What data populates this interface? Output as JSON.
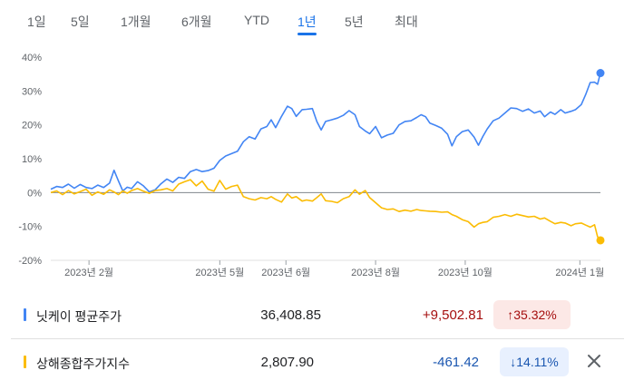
{
  "tabs": [
    {
      "label": "1일",
      "active": false
    },
    {
      "label": "5일",
      "active": false
    },
    {
      "label": "1개월",
      "active": false
    },
    {
      "label": "6개월",
      "active": false
    },
    {
      "label": "YTD",
      "active": false
    },
    {
      "label": "1년",
      "active": true
    },
    {
      "label": "5년",
      "active": false
    },
    {
      "label": "최대",
      "active": false
    }
  ],
  "colors": {
    "nikkei": "#4285f4",
    "shanghai": "#fbbc04",
    "up_text": "#a50e0e",
    "up_bg": "#fce8e6",
    "down_text": "#1a56b0",
    "down_bg": "#e8f0fe"
  },
  "chart_data": {
    "type": "line",
    "title": "",
    "xlabel": "",
    "ylabel": "",
    "ylim": [
      -20,
      40
    ],
    "y_ticks": [
      "40%",
      "30%",
      "20%",
      "10%",
      "0%",
      "-10%",
      "-20%"
    ],
    "y_tick_values": [
      40,
      30,
      20,
      10,
      0,
      -10,
      -20
    ],
    "x_ticks": [
      "2023년 2월",
      "2023년 5월",
      "2023년 6월",
      "2023년 8월",
      "2023년 10월",
      "2024년 1월"
    ],
    "x_tick_dates": [
      "2023-02-01",
      "2023-05-01",
      "2023-06-15",
      "2023-08-15",
      "2023-10-15",
      "2024-01-01"
    ],
    "x_range": [
      "2023-01-06",
      "2024-01-15"
    ],
    "grid": false,
    "zero_line": true,
    "series": [
      {
        "name": "닛케이 평균주가",
        "color_key": "nikkei",
        "points": [
          [
            "2023-01-06",
            1.0
          ],
          [
            "2023-01-10",
            1.8
          ],
          [
            "2023-01-14",
            1.5
          ],
          [
            "2023-01-18",
            2.5
          ],
          [
            "2023-01-22",
            1.3
          ],
          [
            "2023-01-26",
            2.4
          ],
          [
            "2023-01-30",
            1.5
          ],
          [
            "2023-02-03",
            1.2
          ],
          [
            "2023-02-07",
            2.2
          ],
          [
            "2023-02-11",
            1.5
          ],
          [
            "2023-02-15",
            2.8
          ],
          [
            "2023-02-18",
            6.6
          ],
          [
            "2023-02-21",
            3.5
          ],
          [
            "2023-02-24",
            0.5
          ],
          [
            "2023-02-27",
            1.6
          ],
          [
            "2023-03-02",
            1.2
          ],
          [
            "2023-03-06",
            3.2
          ],
          [
            "2023-03-10",
            2.0
          ],
          [
            "2023-03-14",
            0.2
          ],
          [
            "2023-03-18",
            0.8
          ],
          [
            "2023-03-22",
            2.6
          ],
          [
            "2023-03-26",
            4.0
          ],
          [
            "2023-03-30",
            3.0
          ],
          [
            "2023-04-03",
            4.5
          ],
          [
            "2023-04-07",
            4.2
          ],
          [
            "2023-04-11",
            6.2
          ],
          [
            "2023-04-15",
            6.8
          ],
          [
            "2023-04-19",
            6.2
          ],
          [
            "2023-04-23",
            6.5
          ],
          [
            "2023-04-27",
            7.2
          ],
          [
            "2023-05-01",
            9.5
          ],
          [
            "2023-05-05",
            10.8
          ],
          [
            "2023-05-09",
            11.5
          ],
          [
            "2023-05-13",
            12.2
          ],
          [
            "2023-05-17",
            15.0
          ],
          [
            "2023-05-21",
            16.5
          ],
          [
            "2023-05-25",
            15.8
          ],
          [
            "2023-05-29",
            18.8
          ],
          [
            "2023-06-02",
            19.5
          ],
          [
            "2023-06-05",
            21.5
          ],
          [
            "2023-06-08",
            19.2
          ],
          [
            "2023-06-12",
            22.5
          ],
          [
            "2023-06-16",
            25.5
          ],
          [
            "2023-06-19",
            24.8
          ],
          [
            "2023-06-22",
            22.5
          ],
          [
            "2023-06-26",
            24.5
          ],
          [
            "2023-06-29",
            24.6
          ],
          [
            "2023-07-03",
            24.8
          ],
          [
            "2023-07-06",
            21.0
          ],
          [
            "2023-07-09",
            18.5
          ],
          [
            "2023-07-12",
            21.0
          ],
          [
            "2023-07-16",
            21.5
          ],
          [
            "2023-07-20",
            22.0
          ],
          [
            "2023-07-24",
            22.8
          ],
          [
            "2023-07-28",
            24.2
          ],
          [
            "2023-08-01",
            23.0
          ],
          [
            "2023-08-04",
            19.5
          ],
          [
            "2023-08-08",
            18.2
          ],
          [
            "2023-08-11",
            17.4
          ],
          [
            "2023-08-15",
            19.5
          ],
          [
            "2023-08-19",
            16.2
          ],
          [
            "2023-08-23",
            17.0
          ],
          [
            "2023-08-27",
            17.5
          ],
          [
            "2023-08-31",
            20.0
          ],
          [
            "2023-09-04",
            21.0
          ],
          [
            "2023-09-08",
            21.2
          ],
          [
            "2023-09-12",
            22.2
          ],
          [
            "2023-09-15",
            23.0
          ],
          [
            "2023-09-18",
            22.4
          ],
          [
            "2023-09-21",
            20.5
          ],
          [
            "2023-09-25",
            19.8
          ],
          [
            "2023-09-29",
            19.0
          ],
          [
            "2023-10-03",
            17.2
          ],
          [
            "2023-10-06",
            13.8
          ],
          [
            "2023-10-09",
            16.5
          ],
          [
            "2023-10-13",
            18.0
          ],
          [
            "2023-10-17",
            18.5
          ],
          [
            "2023-10-21",
            16.4
          ],
          [
            "2023-10-24",
            14.0
          ],
          [
            "2023-10-27",
            16.6
          ],
          [
            "2023-10-30",
            18.8
          ],
          [
            "2023-11-03",
            21.2
          ],
          [
            "2023-11-07",
            22.0
          ],
          [
            "2023-11-11",
            23.5
          ],
          [
            "2023-11-15",
            25.0
          ],
          [
            "2023-11-19",
            24.8
          ],
          [
            "2023-11-23",
            24.0
          ],
          [
            "2023-11-27",
            24.7
          ],
          [
            "2023-12-01",
            23.5
          ],
          [
            "2023-12-05",
            24.1
          ],
          [
            "2023-12-08",
            22.4
          ],
          [
            "2023-12-12",
            23.8
          ],
          [
            "2023-12-15",
            23.1
          ],
          [
            "2023-12-19",
            24.5
          ],
          [
            "2023-12-22",
            23.5
          ],
          [
            "2023-12-26",
            24.0
          ],
          [
            "2023-12-29",
            24.5
          ],
          [
            "2024-01-02",
            26.0
          ],
          [
            "2024-01-05",
            29.0
          ],
          [
            "2024-01-08",
            32.5
          ],
          [
            "2024-01-11",
            32.6
          ],
          [
            "2024-01-13",
            32.0
          ],
          [
            "2024-01-15",
            35.3
          ]
        ]
      },
      {
        "name": "상해종합주가지수",
        "color_key": "shanghai",
        "points": [
          [
            "2023-01-06",
            0.0
          ],
          [
            "2023-01-10",
            0.5
          ],
          [
            "2023-01-14",
            -0.6
          ],
          [
            "2023-01-18",
            0.6
          ],
          [
            "2023-01-22",
            -0.4
          ],
          [
            "2023-01-26",
            0.3
          ],
          [
            "2023-01-30",
            1.0
          ],
          [
            "2023-02-03",
            -0.8
          ],
          [
            "2023-02-07",
            0.2
          ],
          [
            "2023-02-11",
            -0.5
          ],
          [
            "2023-02-15",
            0.8
          ],
          [
            "2023-02-18",
            0.2
          ],
          [
            "2023-02-21",
            -0.6
          ],
          [
            "2023-02-24",
            0.5
          ],
          [
            "2023-02-27",
            -0.2
          ],
          [
            "2023-03-02",
            0.6
          ],
          [
            "2023-03-06",
            1.2
          ],
          [
            "2023-03-10",
            0.4
          ],
          [
            "2023-03-14",
            -0.2
          ],
          [
            "2023-03-18",
            0.6
          ],
          [
            "2023-03-22",
            0.8
          ],
          [
            "2023-03-26",
            1.2
          ],
          [
            "2023-03-30",
            0.5
          ],
          [
            "2023-04-03",
            2.5
          ],
          [
            "2023-04-07",
            3.2
          ],
          [
            "2023-04-11",
            3.8
          ],
          [
            "2023-04-15",
            2.0
          ],
          [
            "2023-04-19",
            3.4
          ],
          [
            "2023-04-23",
            1.0
          ],
          [
            "2023-04-27",
            0.4
          ],
          [
            "2023-05-01",
            3.6
          ],
          [
            "2023-05-05",
            1.0
          ],
          [
            "2023-05-09",
            1.8
          ],
          [
            "2023-05-13",
            2.2
          ],
          [
            "2023-05-17",
            -1.2
          ],
          [
            "2023-05-21",
            -1.8
          ],
          [
            "2023-05-25",
            -2.2
          ],
          [
            "2023-05-29",
            -1.5
          ],
          [
            "2023-06-02",
            -1.8
          ],
          [
            "2023-06-05",
            -1.2
          ],
          [
            "2023-06-08",
            -2.0
          ],
          [
            "2023-06-12",
            -2.8
          ],
          [
            "2023-06-16",
            -0.4
          ],
          [
            "2023-06-19",
            -1.6
          ],
          [
            "2023-06-22",
            -1.2
          ],
          [
            "2023-06-26",
            -2.5
          ],
          [
            "2023-06-29",
            -2.2
          ],
          [
            "2023-07-03",
            -2.5
          ],
          [
            "2023-07-06",
            -1.5
          ],
          [
            "2023-07-09",
            -0.4
          ],
          [
            "2023-07-12",
            -2.4
          ],
          [
            "2023-07-16",
            -2.6
          ],
          [
            "2023-07-20",
            -3.0
          ],
          [
            "2023-07-24",
            -1.8
          ],
          [
            "2023-07-28",
            -1.2
          ],
          [
            "2023-08-01",
            0.8
          ],
          [
            "2023-08-04",
            -0.5
          ],
          [
            "2023-08-08",
            0.6
          ],
          [
            "2023-08-11",
            -1.5
          ],
          [
            "2023-08-15",
            -3.0
          ],
          [
            "2023-08-19",
            -4.5
          ],
          [
            "2023-08-23",
            -5.0
          ],
          [
            "2023-08-27",
            -4.8
          ],
          [
            "2023-08-31",
            -5.6
          ],
          [
            "2023-09-04",
            -5.2
          ],
          [
            "2023-09-08",
            -5.5
          ],
          [
            "2023-09-12",
            -5.0
          ],
          [
            "2023-09-15",
            -5.3
          ],
          [
            "2023-09-18",
            -5.4
          ],
          [
            "2023-09-21",
            -5.5
          ],
          [
            "2023-09-25",
            -5.6
          ],
          [
            "2023-09-29",
            -5.8
          ],
          [
            "2023-10-03",
            -5.7
          ],
          [
            "2023-10-06",
            -6.5
          ],
          [
            "2023-10-09",
            -7.0
          ],
          [
            "2023-10-13",
            -8.0
          ],
          [
            "2023-10-17",
            -8.6
          ],
          [
            "2023-10-21",
            -10.2
          ],
          [
            "2023-10-24",
            -9.2
          ],
          [
            "2023-10-27",
            -8.8
          ],
          [
            "2023-10-30",
            -8.6
          ],
          [
            "2023-11-03",
            -7.3
          ],
          [
            "2023-11-07",
            -7.0
          ],
          [
            "2023-11-11",
            -6.5
          ],
          [
            "2023-11-15",
            -7.0
          ],
          [
            "2023-11-19",
            -6.4
          ],
          [
            "2023-11-23",
            -6.8
          ],
          [
            "2023-11-27",
            -7.2
          ],
          [
            "2023-12-01",
            -7.0
          ],
          [
            "2023-12-05",
            -7.8
          ],
          [
            "2023-12-08",
            -7.5
          ],
          [
            "2023-12-12",
            -8.5
          ],
          [
            "2023-12-15",
            -9.2
          ],
          [
            "2023-12-19",
            -8.8
          ],
          [
            "2023-12-22",
            -9.0
          ],
          [
            "2023-12-26",
            -9.8
          ],
          [
            "2023-12-29",
            -9.2
          ],
          [
            "2024-01-02",
            -9.0
          ],
          [
            "2024-01-05",
            -9.6
          ],
          [
            "2024-01-08",
            -10.2
          ],
          [
            "2024-01-11",
            -9.5
          ],
          [
            "2024-01-13",
            -13.0
          ],
          [
            "2024-01-15",
            -14.1
          ]
        ]
      }
    ]
  },
  "rows": [
    {
      "name": "닛케이 평균주가",
      "price": "36,408.85",
      "change": "+9,502.81",
      "pct": "↑35.32%",
      "direction": "up",
      "color_key": "nikkei"
    },
    {
      "name": "상해종합주가지수",
      "price": "2,807.90",
      "change": "-461.42",
      "pct": "↓14.11%",
      "direction": "down",
      "color_key": "shanghai"
    }
  ]
}
